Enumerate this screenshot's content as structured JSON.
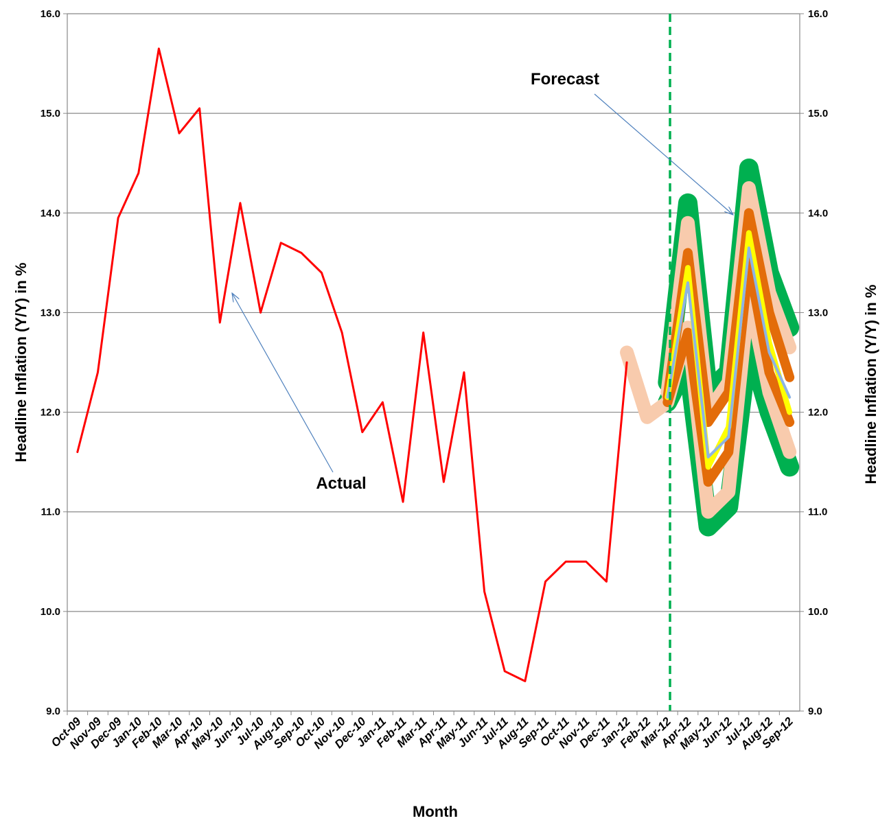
{
  "chart_data": {
    "type": "line",
    "x_label": "Month",
    "y_label": "Headline Inflation (Y/Y) in %",
    "y2_label": "Headline Inflation (Y/Y) in %",
    "annotations": [
      "Actual",
      "Forecast"
    ],
    "categories": [
      "Oct-09",
      "Nov-09",
      "Dec-09",
      "Jan-10",
      "Feb-10",
      "Mar-10",
      "Apr-10",
      "May-10",
      "Jun-10",
      "Jul-10",
      "Aug-10",
      "Sep-10",
      "Oct-10",
      "Nov-10",
      "Dec-10",
      "Jan-11",
      "Feb-11",
      "Mar-11",
      "Apr-11",
      "May-11",
      "Jun-11",
      "Jul-11",
      "Aug-11",
      "Sep-11",
      "Oct-11",
      "Nov-11",
      "Dec-11",
      "Jan-12",
      "Feb-12",
      "Mar-12",
      "Apr-12",
      "May-12",
      "Jun-12",
      "Jul-12",
      "Aug-12",
      "Sep-12"
    ],
    "series": [
      {
        "color": "#00b050",
        "values": [
          null,
          null,
          null,
          null,
          null,
          null,
          null,
          null,
          null,
          null,
          null,
          null,
          null,
          null,
          null,
          null,
          null,
          null,
          null,
          null,
          null,
          null,
          null,
          null,
          null,
          null,
          null,
          null,
          null,
          12.3,
          14.1,
          12.2,
          12.4,
          14.45,
          13.4,
          12.85
        ]
      },
      {
        "color": "#00b050",
        "values": [
          null,
          null,
          null,
          null,
          null,
          null,
          null,
          null,
          null,
          null,
          null,
          null,
          null,
          null,
          null,
          null,
          null,
          null,
          null,
          null,
          null,
          null,
          null,
          null,
          null,
          null,
          null,
          null,
          null,
          12.1,
          12.5,
          10.85,
          11.05,
          12.7,
          12.0,
          11.45
        ]
      },
      {
        "color": "#f8cbad",
        "values": [
          null,
          null,
          null,
          null,
          null,
          null,
          null,
          null,
          null,
          null,
          null,
          null,
          null,
          null,
          null,
          null,
          null,
          null,
          null,
          null,
          null,
          null,
          null,
          null,
          null,
          null,
          null,
          null,
          null,
          12.2,
          13.9,
          12.0,
          12.3,
          14.25,
          13.2,
          12.65
        ]
      },
      {
        "color": "#f8cbad",
        "values": [
          null,
          null,
          null,
          null,
          null,
          null,
          null,
          null,
          null,
          null,
          null,
          null,
          null,
          null,
          null,
          null,
          null,
          null,
          null,
          null,
          null,
          null,
          null,
          null,
          null,
          null,
          null,
          12.6,
          11.95,
          12.1,
          12.85,
          11.0,
          11.2,
          13.2,
          12.2,
          11.6
        ]
      },
      {
        "color": "#e36c0a",
        "values": [
          null,
          null,
          null,
          null,
          null,
          null,
          null,
          null,
          null,
          null,
          null,
          null,
          null,
          null,
          null,
          null,
          null,
          null,
          null,
          null,
          null,
          null,
          null,
          null,
          null,
          null,
          null,
          null,
          null,
          12.15,
          13.6,
          11.9,
          12.2,
          14.0,
          13.0,
          12.35
        ]
      },
      {
        "color": "#e36c0a",
        "values": [
          null,
          null,
          null,
          null,
          null,
          null,
          null,
          null,
          null,
          null,
          null,
          null,
          null,
          null,
          null,
          null,
          null,
          null,
          null,
          null,
          null,
          null,
          null,
          null,
          null,
          null,
          null,
          null,
          null,
          12.1,
          12.8,
          11.3,
          11.6,
          13.5,
          12.4,
          11.9
        ]
      },
      {
        "color": "#ffff00",
        "values": [
          null,
          null,
          null,
          null,
          null,
          null,
          null,
          null,
          null,
          null,
          null,
          null,
          null,
          null,
          null,
          null,
          null,
          null,
          null,
          null,
          null,
          null,
          null,
          null,
          null,
          null,
          null,
          null,
          null,
          12.15,
          13.45,
          11.45,
          11.85,
          13.8,
          12.7,
          12.0
        ]
      },
      {
        "color": "#8eb4e3",
        "values": [
          null,
          null,
          null,
          null,
          null,
          null,
          null,
          null,
          null,
          null,
          null,
          null,
          null,
          null,
          null,
          null,
          null,
          null,
          null,
          null,
          null,
          null,
          null,
          null,
          null,
          null,
          null,
          null,
          null,
          12.15,
          13.3,
          11.55,
          11.75,
          13.65,
          12.6,
          12.15
        ]
      },
      {
        "color": "#ff0000",
        "values": [
          11.6,
          12.4,
          13.95,
          14.4,
          15.65,
          14.8,
          15.05,
          12.9,
          14.1,
          13.0,
          13.7,
          13.6,
          13.4,
          12.8,
          11.8,
          12.1,
          11.1,
          12.8,
          11.3,
          12.4,
          10.2,
          9.4,
          9.3,
          10.3,
          10.5,
          10.5,
          10.3,
          12.5,
          null,
          null,
          null,
          null,
          null,
          null,
          null,
          null
        ]
      }
    ],
    "ylim": [
      9,
      16
    ],
    "yticks": [
      {
        "value": 9,
        "label": "9.0"
      },
      {
        "value": 10,
        "label": "10.0"
      },
      {
        "value": 11,
        "label": "11.0"
      },
      {
        "value": 12,
        "label": "12.0"
      },
      {
        "value": 13,
        "label": "13.0"
      },
      {
        "value": 14,
        "label": "14.0"
      },
      {
        "value": 15,
        "label": "15.0"
      },
      {
        "value": 16,
        "label": "16.0"
      }
    ],
    "y2lim": [
      9,
      16
    ],
    "y2ticks": [
      {
        "value": 9,
        "label": "9.0"
      },
      {
        "value": 10,
        "label": "10.0"
      },
      {
        "value": 11,
        "label": "11.0"
      },
      {
        "value": 12,
        "label": "12.0"
      },
      {
        "value": 13,
        "label": "13.0"
      },
      {
        "value": 14,
        "label": "14.0"
      },
      {
        "value": 15,
        "label": "15.0"
      },
      {
        "value": 16,
        "label": "16.0"
      }
    ],
    "grid": true
  }
}
